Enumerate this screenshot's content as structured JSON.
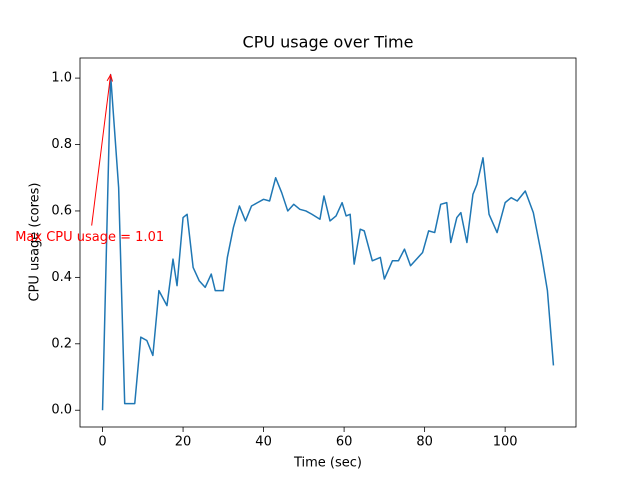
{
  "chart_data": {
    "type": "line",
    "title": "CPU usage over Time",
    "x_label": "Time (sec)",
    "y_label": "CPU usage (cores)",
    "color": "#1f77b4",
    "x": [
      0,
      2,
      4,
      5.5,
      8,
      9.5,
      11,
      12.5,
      14,
      16,
      17.5,
      18.5,
      20,
      21,
      22.5,
      24,
      25.5,
      27,
      28,
      30,
      31,
      32.5,
      34,
      35.5,
      37,
      38.5,
      40,
      41.5,
      43,
      44.5,
      46,
      47.5,
      49,
      50.5,
      52,
      54,
      55,
      56.5,
      58,
      59.5,
      60.5,
      61.5,
      62.5,
      64,
      65,
      67,
      69,
      70,
      72,
      73.5,
      75,
      76.5,
      78,
      79.5,
      81,
      82.5,
      84,
      85.5,
      86.5,
      88,
      89,
      90.5,
      92,
      93,
      94.5,
      96,
      98,
      100,
      101.5,
      103,
      105,
      107,
      109,
      110.5,
      112
    ],
    "values": [
      0,
      1.01,
      0.67,
      0.02,
      0.02,
      0.22,
      0.21,
      0.165,
      0.36,
      0.315,
      0.455,
      0.375,
      0.58,
      0.59,
      0.43,
      0.39,
      0.37,
      0.41,
      0.36,
      0.36,
      0.46,
      0.55,
      0.615,
      0.57,
      0.615,
      0.625,
      0.635,
      0.63,
      0.7,
      0.655,
      0.6,
      0.62,
      0.605,
      0.6,
      0.59,
      0.575,
      0.645,
      0.57,
      0.585,
      0.625,
      0.585,
      0.59,
      0.44,
      0.545,
      0.54,
      0.45,
      0.46,
      0.395,
      0.45,
      0.45,
      0.485,
      0.435,
      0.455,
      0.475,
      0.54,
      0.535,
      0.62,
      0.625,
      0.505,
      0.58,
      0.595,
      0.505,
      0.65,
      0.68,
      0.76,
      0.59,
      0.535,
      0.625,
      0.64,
      0.63,
      0.66,
      0.595,
      0.47,
      0.36,
      0.135
    ],
    "xlim": [
      -5.6,
      117.6
    ],
    "ylim": [
      -0.0505,
      1.0605
    ],
    "xticks": [
      0,
      20,
      40,
      60,
      80,
      100
    ],
    "yticks": [
      {
        "value": 0,
        "label": "0.0"
      },
      {
        "value": 0.2,
        "label": "0.2"
      },
      {
        "value": 0.4,
        "label": "0.4"
      },
      {
        "value": 0.6,
        "label": "0.6"
      },
      {
        "value": 0.8,
        "label": "0.8"
      },
      {
        "value": 1,
        "label": "1.0"
      }
    ],
    "annotation": {
      "text": "Max CPU usage = 1.01",
      "x": -3.2,
      "y": 0.52,
      "point_index": 1,
      "color": "#ff0000"
    }
  }
}
